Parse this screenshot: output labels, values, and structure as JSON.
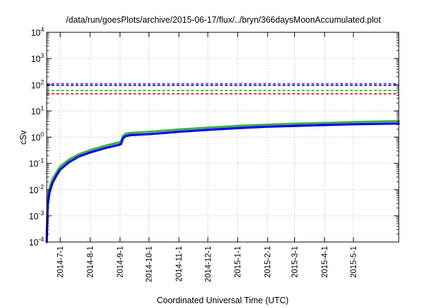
{
  "chart_data": {
    "type": "line",
    "title": "/data/run/goesPlots/archive/2015-06-17/flux/../bryn/366daysMoonAccumulated.plot",
    "xlabel": "Coordinated Universal Time (UTC)",
    "ylabel": "cSv",
    "x_axis": {
      "type": "time",
      "range": [
        "2014-06-17",
        "2015-06-17"
      ],
      "tick_labels": [
        "2014-7-1",
        "2014-8-1",
        "2014-9-1",
        "2014-10-1",
        "2014-11-1",
        "2014-12-1",
        "2015-1-1",
        "2015-2-1",
        "2015-3-1",
        "2015-4-1",
        "2015-5-1"
      ]
    },
    "y_axis": {
      "scale": "log",
      "range": [
        0.0001,
        10000
      ],
      "tick_labels": [
        {
          "base": "10",
          "exp": "-4"
        },
        {
          "base": "10",
          "exp": "-3"
        },
        {
          "base": "10",
          "exp": "-2"
        },
        {
          "base": "10",
          "exp": "-1"
        },
        {
          "base": "10",
          "exp": "0"
        },
        {
          "base": "10",
          "exp": "1"
        },
        {
          "base": "10",
          "exp": "2"
        },
        {
          "base": "10",
          "exp": "3"
        },
        {
          "base": "10",
          "exp": "4"
        }
      ]
    },
    "grid": true,
    "legend": "none",
    "reference_lines": [
      {
        "y": 110,
        "color": "#7b2fbe",
        "style": "dashed"
      },
      {
        "y": 95,
        "color": "#0000ff",
        "style": "dashed"
      },
      {
        "y": 60,
        "color": "#00c000",
        "style": "dashed"
      },
      {
        "y": 45,
        "color": "#e00000",
        "style": "dashed"
      }
    ],
    "series": [
      {
        "color": "#40b040",
        "x": [
          "2014-06-17",
          "2014-06-18",
          "2014-06-20",
          "2014-06-23",
          "2014-06-27",
          "2014-07-01",
          "2014-07-10",
          "2014-07-20",
          "2014-08-01",
          "2014-08-15",
          "2014-08-30",
          "2014-09-02",
          "2014-09-04",
          "2014-09-07",
          "2014-09-12",
          "2014-10-01",
          "2014-11-01",
          "2014-12-01",
          "2015-01-01",
          "2015-02-01",
          "2015-03-01",
          "2015-04-01",
          "2015-05-01",
          "2015-06-17"
        ],
        "y": [
          0.0002,
          0.004,
          0.012,
          0.025,
          0.045,
          0.075,
          0.14,
          0.22,
          0.32,
          0.45,
          0.62,
          0.66,
          1.1,
          1.35,
          1.45,
          1.6,
          1.95,
          2.3,
          2.7,
          3.0,
          3.25,
          3.5,
          3.75,
          4.1
        ]
      },
      {
        "color": "#0000ff",
        "x": [
          "2014-06-17",
          "2014-06-18",
          "2014-06-20",
          "2014-06-23",
          "2014-06-27",
          "2014-07-01",
          "2014-07-10",
          "2014-07-20",
          "2014-08-01",
          "2014-08-15",
          "2014-08-30",
          "2014-09-02",
          "2014-09-04",
          "2014-09-07",
          "2014-09-12",
          "2014-10-01",
          "2014-11-01",
          "2014-12-01",
          "2015-01-01",
          "2015-02-01",
          "2015-03-01",
          "2015-04-01",
          "2015-05-01",
          "2015-06-17"
        ],
        "y": [
          0.0001,
          0.0025,
          0.008,
          0.018,
          0.034,
          0.058,
          0.11,
          0.18,
          0.26,
          0.37,
          0.5,
          0.54,
          0.9,
          1.1,
          1.2,
          1.3,
          1.6,
          1.9,
          2.2,
          2.5,
          2.7,
          2.9,
          3.1,
          3.3
        ]
      }
    ]
  }
}
